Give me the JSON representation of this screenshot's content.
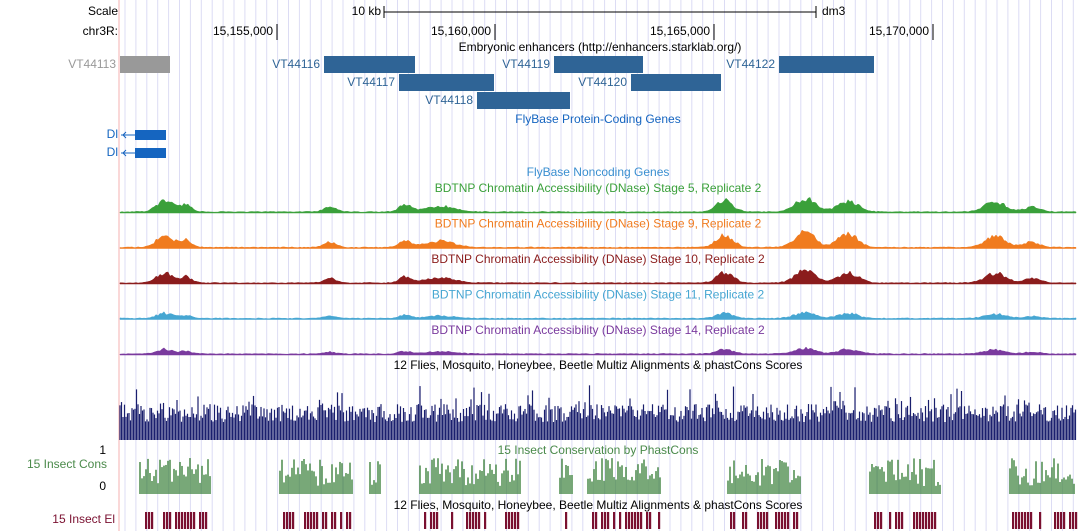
{
  "ruler": {
    "scale_label": "Scale",
    "scale_text": "10 kb",
    "assembly": "dm3",
    "chrom_label": "chr3R:",
    "positions": [
      "15,155,000",
      "15,160,000",
      "15,165,000",
      "15,170,000"
    ]
  },
  "enhancers": {
    "title": "Embryonic enhancers (http://enhancers.starklab.org/)",
    "items": [
      {
        "label": "VT44113",
        "color": "#999999"
      },
      {
        "label": "VT44116",
        "color": "#2f6496"
      },
      {
        "label": "VT44117",
        "color": "#2f6496"
      },
      {
        "label": "VT44118",
        "color": "#2f6496"
      },
      {
        "label": "VT44119",
        "color": "#2f6496"
      },
      {
        "label": "VT44120",
        "color": "#2f6496"
      },
      {
        "label": "VT44122",
        "color": "#2f6496"
      }
    ]
  },
  "protein_genes": {
    "title": "FlyBase Protein-Coding Genes",
    "color": "#1565c0",
    "items": [
      "Dl",
      "Dl"
    ]
  },
  "noncoding_genes": {
    "title": "FlyBase Noncoding Genes",
    "color": "#3a8fd0"
  },
  "dnase": [
    {
      "title": "BDTNP Chromatin Accessibility (DNase) Stage 5, Replicate 2",
      "color": "#3aa03a"
    },
    {
      "title": "BDTNP Chromatin Accessibility (DNase) Stage 9, Replicate 2",
      "color": "#f07b1e"
    },
    {
      "title": "BDTNP Chromatin Accessibility (DNase) Stage 10, Replicate 2",
      "color": "#8b1c1c"
    },
    {
      "title": "BDTNP Chromatin Accessibility (DNase) Stage 11, Replicate 2",
      "color": "#46a6d2"
    },
    {
      "title": "BDTNP Chromatin Accessibility (DNase) Stage 14, Replicate 2",
      "color": "#7a3a9e"
    }
  ],
  "multiz": {
    "title": "12 Flies, Mosquito, Honeybee, Beetle Multiz Alignments & phastCons Scores",
    "color": "#1a1f6e"
  },
  "phastcons": {
    "title": "15 Insect Conservation by PhastCons",
    "side_label": "15 Insect Cons",
    "ymax": "1",
    "ymin": "0",
    "color": "#4a8a4a"
  },
  "elements": {
    "title": "12 Flies, Mosquito, Honeybee, Beetle Multiz Alignments & phastCons Scores",
    "side_label": "15 Insect El",
    "color": "#7a1030"
  }
}
